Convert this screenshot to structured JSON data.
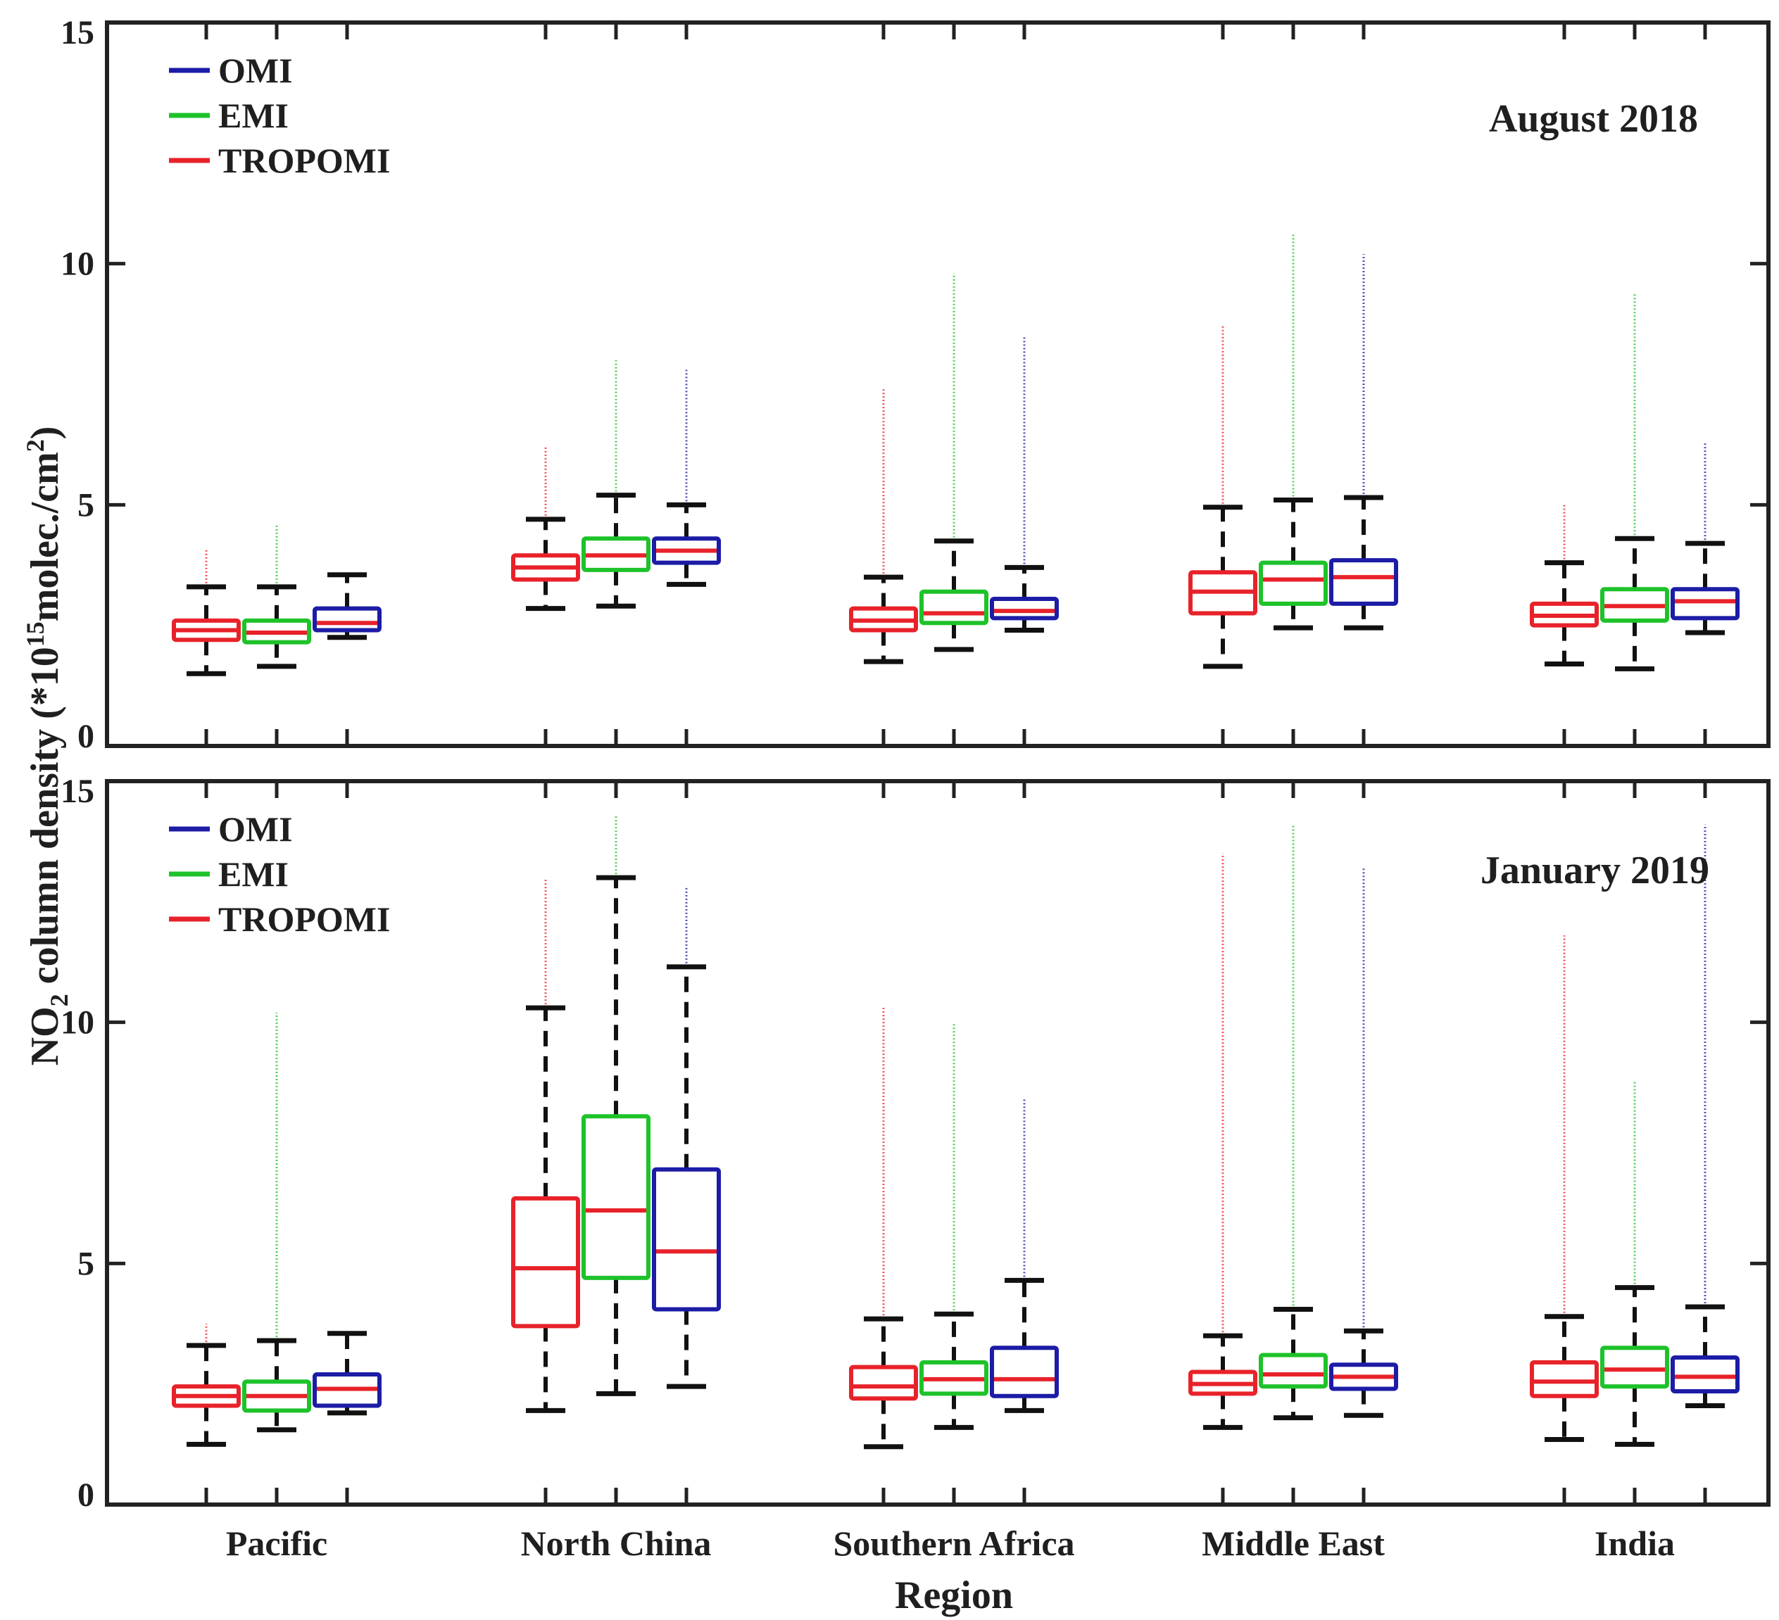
{
  "chart_data": {
    "type": "boxplot",
    "ylabel": "NO2 column density (*10^15 molec./cm^2)",
    "ylabel_parts": {
      "pre": "NO",
      "sub": "2",
      "mid": " column density (*10",
      "sup1": "15",
      "post1": "molec./cm",
      "sup2": "2",
      "end": ")"
    },
    "xlabel": "Region",
    "ylim": [
      0,
      15
    ],
    "yticks": [
      "0",
      "5",
      "10",
      "15"
    ],
    "categories": [
      "Pacific",
      "North China",
      "Southern Africa",
      "Middle East",
      "India"
    ],
    "series_names": [
      "TROPOMI",
      "EMI",
      "OMI"
    ],
    "legend": [
      "OMI",
      "EMI",
      "TROPOMI"
    ],
    "colors": {
      "TROPOMI": "#e8222a",
      "EMI": "#1ec22a",
      "OMI": "#1c1ca6",
      "median": "#e8222a",
      "whisker": "#111111",
      "axis": "#222222"
    },
    "panels": [
      {
        "title": "August 2018",
        "boxes": [
          [
            {
              "whisker_low": 1.5,
              "q1": 2.2,
              "median": 2.4,
              "q3": 2.6,
              "whisker_high": 3.3,
              "outlier_max": 4.1
            },
            {
              "whisker_low": 1.65,
              "q1": 2.15,
              "median": 2.35,
              "q3": 2.6,
              "whisker_high": 3.3,
              "outlier_max": 4.6
            },
            {
              "whisker_low": 2.25,
              "q1": 2.4,
              "median": 2.55,
              "q3": 2.85,
              "whisker_high": 3.55,
              "outlier_max": 3.55
            }
          ],
          [
            {
              "whisker_low": 2.85,
              "q1": 3.45,
              "median": 3.7,
              "q3": 3.95,
              "whisker_high": 4.7,
              "outlier_max": 6.2
            },
            {
              "whisker_low": 2.9,
              "q1": 3.65,
              "median": 3.95,
              "q3": 4.3,
              "whisker_high": 5.2,
              "outlier_max": 8.0
            },
            {
              "whisker_low": 3.35,
              "q1": 3.8,
              "median": 4.05,
              "q3": 4.3,
              "whisker_high": 5.0,
              "outlier_max": 7.8
            }
          ],
          [
            {
              "whisker_low": 1.75,
              "q1": 2.4,
              "median": 2.6,
              "q3": 2.85,
              "whisker_high": 3.5,
              "outlier_max": 7.4
            },
            {
              "whisker_low": 2.0,
              "q1": 2.55,
              "median": 2.75,
              "q3": 3.2,
              "whisker_high": 4.25,
              "outlier_max": 9.8
            },
            {
              "whisker_low": 2.4,
              "q1": 2.65,
              "median": 2.8,
              "q3": 3.05,
              "whisker_high": 3.7,
              "outlier_max": 8.5
            }
          ],
          [
            {
              "whisker_low": 1.65,
              "q1": 2.75,
              "median": 3.2,
              "q3": 3.6,
              "whisker_high": 4.95,
              "outlier_max": 8.7
            },
            {
              "whisker_low": 2.45,
              "q1": 2.95,
              "median": 3.45,
              "q3": 3.8,
              "whisker_high": 5.1,
              "outlier_max": 10.6
            },
            {
              "whisker_low": 2.45,
              "q1": 2.95,
              "median": 3.5,
              "q3": 3.85,
              "whisker_high": 5.15,
              "outlier_max": 10.2
            }
          ],
          [
            {
              "whisker_low": 1.7,
              "q1": 2.5,
              "median": 2.7,
              "q3": 2.95,
              "whisker_high": 3.8,
              "outlier_max": 5.0
            },
            {
              "whisker_low": 1.6,
              "q1": 2.6,
              "median": 2.9,
              "q3": 3.25,
              "whisker_high": 4.3,
              "outlier_max": 9.4
            },
            {
              "whisker_low": 2.35,
              "q1": 2.65,
              "median": 3.0,
              "q3": 3.25,
              "whisker_high": 4.2,
              "outlier_max": 6.3
            }
          ]
        ]
      },
      {
        "title": "January 2019",
        "boxes": [
          [
            {
              "whisker_low": 1.25,
              "q1": 2.05,
              "median": 2.25,
              "q3": 2.45,
              "whisker_high": 3.3,
              "outlier_max": 3.75
            },
            {
              "whisker_low": 1.55,
              "q1": 1.95,
              "median": 2.25,
              "q3": 2.55,
              "whisker_high": 3.4,
              "outlier_max": 10.2
            },
            {
              "whisker_low": 1.9,
              "q1": 2.05,
              "median": 2.4,
              "q3": 2.7,
              "whisker_high": 3.55,
              "outlier_max": 3.55
            }
          ],
          [
            {
              "whisker_low": 1.95,
              "q1": 3.7,
              "median": 4.9,
              "q3": 6.35,
              "whisker_high": 10.3,
              "outlier_max": 13.0
            },
            {
              "whisker_low": 2.3,
              "q1": 4.7,
              "median": 6.1,
              "q3": 8.05,
              "whisker_high": 13.0,
              "outlier_max": 14.3
            },
            {
              "whisker_low": 2.45,
              "q1": 4.05,
              "median": 5.25,
              "q3": 6.95,
              "whisker_high": 11.15,
              "outlier_max": 12.8
            }
          ],
          [
            {
              "whisker_low": 1.2,
              "q1": 2.2,
              "median": 2.45,
              "q3": 2.85,
              "whisker_high": 3.85,
              "outlier_max": 10.3
            },
            {
              "whisker_low": 1.6,
              "q1": 2.3,
              "median": 2.6,
              "q3": 2.95,
              "whisker_high": 3.95,
              "outlier_max": 10.0
            },
            {
              "whisker_low": 1.95,
              "q1": 2.25,
              "median": 2.6,
              "q3": 3.25,
              "whisker_high": 4.65,
              "outlier_max": 8.4
            }
          ],
          [
            {
              "whisker_low": 1.6,
              "q1": 2.3,
              "median": 2.5,
              "q3": 2.75,
              "whisker_high": 3.5,
              "outlier_max": 13.5
            },
            {
              "whisker_low": 1.8,
              "q1": 2.45,
              "median": 2.7,
              "q3": 3.1,
              "whisker_high": 4.05,
              "outlier_max": 14.1
            },
            {
              "whisker_low": 1.85,
              "q1": 2.4,
              "median": 2.65,
              "q3": 2.9,
              "whisker_high": 3.6,
              "outlier_max": 13.2
            }
          ],
          [
            {
              "whisker_low": 1.35,
              "q1": 2.25,
              "median": 2.55,
              "q3": 2.95,
              "whisker_high": 3.9,
              "outlier_max": 11.8
            },
            {
              "whisker_low": 1.25,
              "q1": 2.45,
              "median": 2.8,
              "q3": 3.25,
              "whisker_high": 4.5,
              "outlier_max": 8.8
            },
            {
              "whisker_low": 2.05,
              "q1": 2.35,
              "median": 2.65,
              "q3": 3.05,
              "whisker_high": 4.1,
              "outlier_max": 14.1
            }
          ]
        ]
      }
    ]
  }
}
